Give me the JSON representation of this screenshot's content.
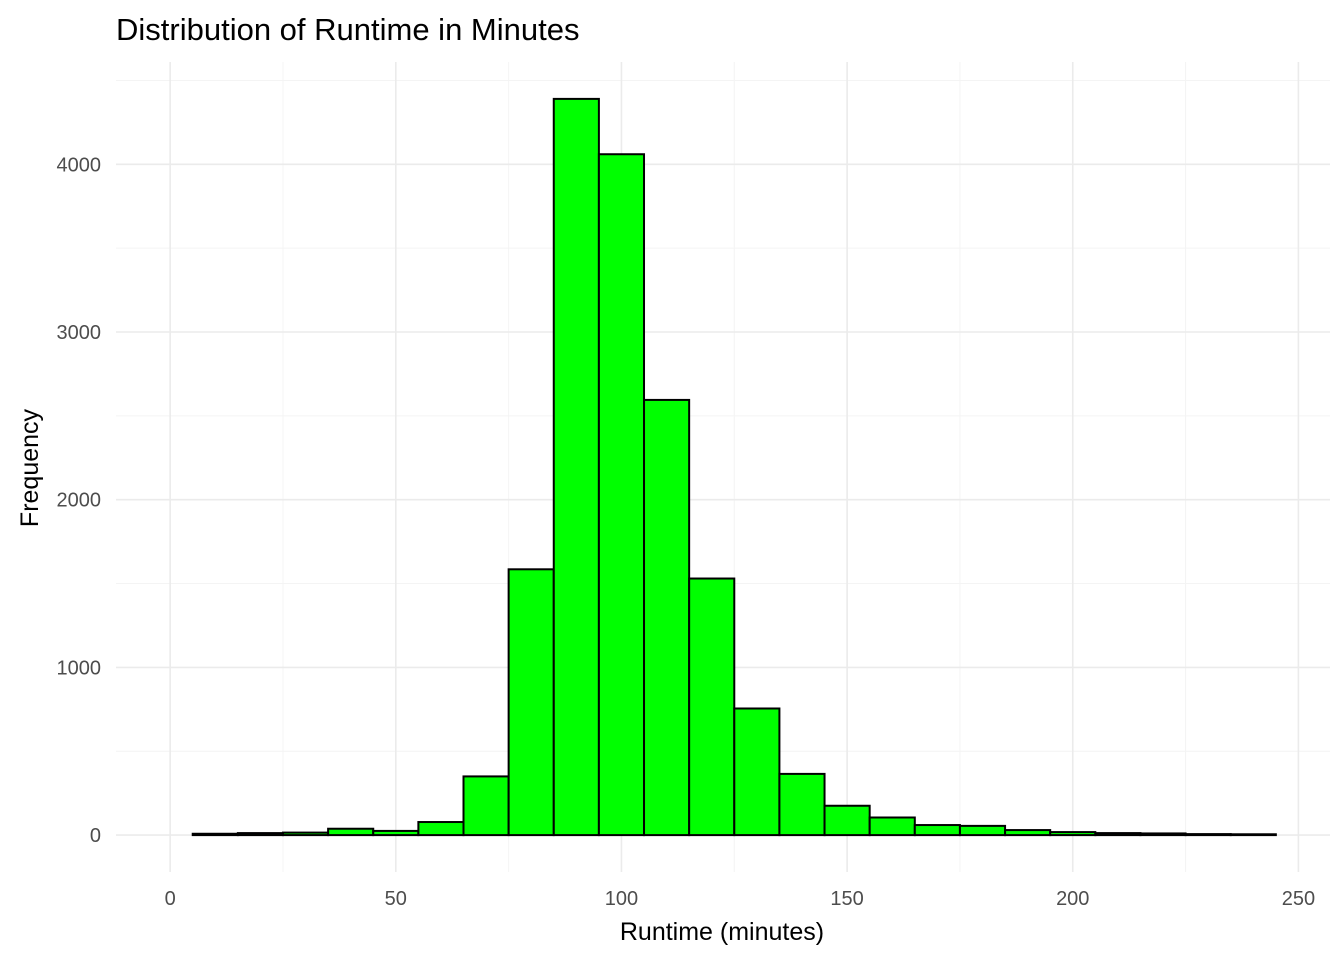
{
  "chart_data": {
    "type": "bar",
    "title": "Distribution of Runtime in Minutes",
    "xlabel": "Runtime (minutes)",
    "ylabel": "Frequency",
    "bar_color": "#00ff00",
    "bar_outline_color": "#000000",
    "binwidth": 10,
    "bins": [
      {
        "start": 5,
        "end": 15,
        "count": 8
      },
      {
        "start": 15,
        "end": 25,
        "count": 12
      },
      {
        "start": 25,
        "end": 35,
        "count": 15
      },
      {
        "start": 35,
        "end": 45,
        "count": 38
      },
      {
        "start": 45,
        "end": 55,
        "count": 25
      },
      {
        "start": 55,
        "end": 65,
        "count": 78
      },
      {
        "start": 65,
        "end": 75,
        "count": 350
      },
      {
        "start": 75,
        "end": 85,
        "count": 1585
      },
      {
        "start": 85,
        "end": 95,
        "count": 4390
      },
      {
        "start": 95,
        "end": 105,
        "count": 4060
      },
      {
        "start": 105,
        "end": 115,
        "count": 2595
      },
      {
        "start": 115,
        "end": 125,
        "count": 1530
      },
      {
        "start": 125,
        "end": 135,
        "count": 755
      },
      {
        "start": 135,
        "end": 145,
        "count": 365
      },
      {
        "start": 145,
        "end": 155,
        "count": 175
      },
      {
        "start": 155,
        "end": 165,
        "count": 105
      },
      {
        "start": 165,
        "end": 175,
        "count": 60
      },
      {
        "start": 175,
        "end": 185,
        "count": 55
      },
      {
        "start": 185,
        "end": 195,
        "count": 30
      },
      {
        "start": 195,
        "end": 205,
        "count": 18
      },
      {
        "start": 205,
        "end": 215,
        "count": 12
      },
      {
        "start": 215,
        "end": 225,
        "count": 10
      },
      {
        "start": 225,
        "end": 235,
        "count": 6
      },
      {
        "start": 235,
        "end": 245,
        "count": 5
      }
    ],
    "xlim": [
      -12,
      257
    ],
    "ylim": [
      -220,
      4610
    ],
    "x_ticks": [
      0,
      50,
      100,
      150,
      200,
      250
    ],
    "x_tick_labels": [
      "0",
      "50",
      "100",
      "150",
      "200",
      "250"
    ],
    "x_minor_ticks": [
      25,
      75,
      125,
      175,
      225
    ],
    "y_ticks": [
      0,
      1000,
      2000,
      3000,
      4000
    ],
    "y_tick_labels": [
      "0",
      "1000",
      "2000",
      "3000",
      "4000"
    ],
    "y_minor_ticks": [
      500,
      1500,
      2500,
      3500,
      4500
    ],
    "grid": true,
    "legend": "none"
  }
}
